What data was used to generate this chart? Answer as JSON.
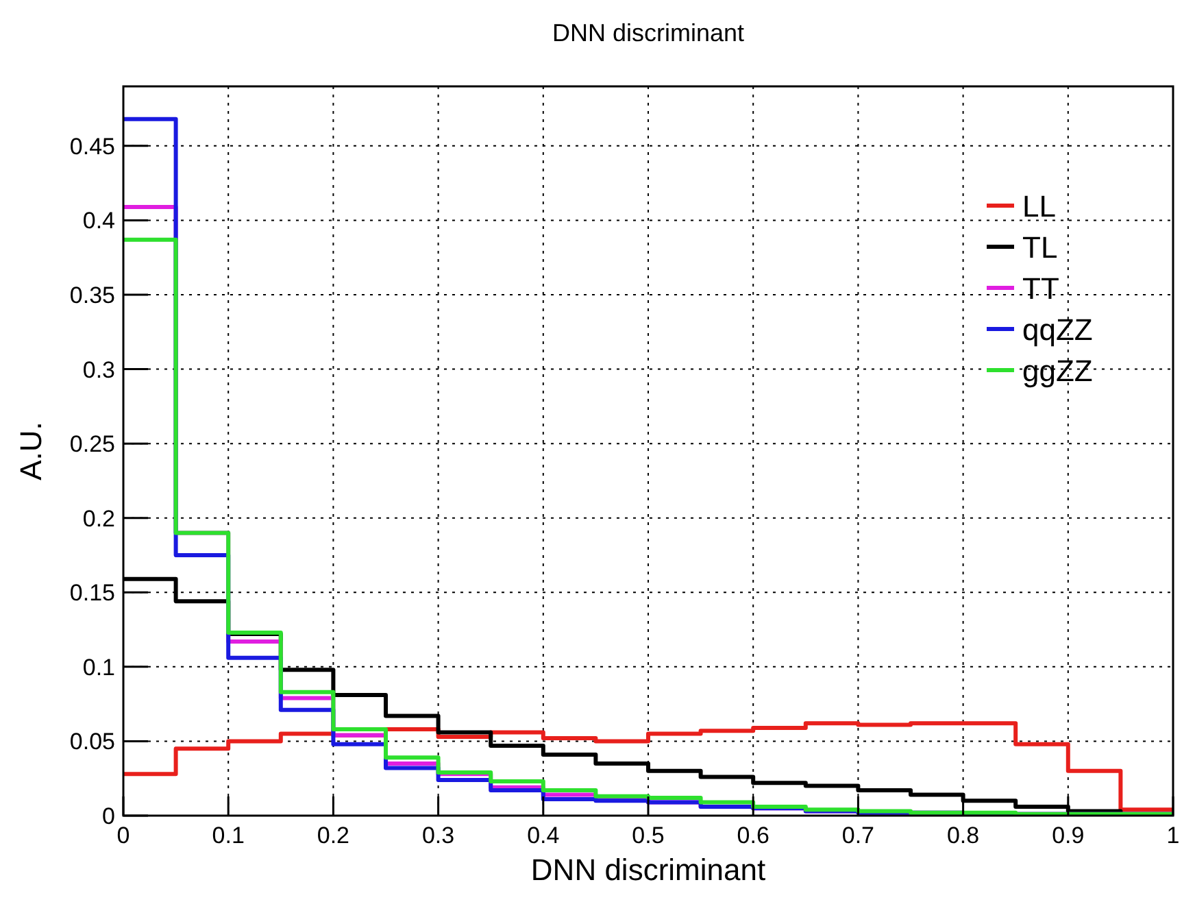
{
  "chart_data": {
    "type": "histogram",
    "title": "DNN discriminant",
    "xlabel": "DNN discriminant",
    "ylabel": "A.U.",
    "bins": [
      0,
      0.05,
      0.1,
      0.15,
      0.2,
      0.25,
      0.3,
      0.35,
      0.4,
      0.45,
      0.5,
      0.55,
      0.6,
      0.65,
      0.7,
      0.75,
      0.8,
      0.85,
      0.9,
      0.95,
      1
    ],
    "series": [
      {
        "name": "LL",
        "color": "#e8201c",
        "values": [
          0.028,
          0.045,
          0.05,
          0.055,
          0.054,
          0.058,
          0.053,
          0.056,
          0.052,
          0.05,
          0.055,
          0.057,
          0.059,
          0.062,
          0.061,
          0.062,
          0.062,
          0.048,
          0.03,
          0.004
        ]
      },
      {
        "name": "TL",
        "color": "#000000",
        "values": [
          0.159,
          0.144,
          0.122,
          0.098,
          0.081,
          0.067,
          0.056,
          0.047,
          0.041,
          0.035,
          0.03,
          0.026,
          0.022,
          0.02,
          0.017,
          0.014,
          0.01,
          0.006,
          0.003,
          0.001
        ]
      },
      {
        "name": "TT",
        "color": "#e01ee0",
        "values": [
          0.409,
          0.19,
          0.117,
          0.079,
          0.054,
          0.035,
          0.028,
          0.019,
          0.014,
          0.011,
          0.009,
          0.006,
          0.005,
          0.003,
          0.002,
          0.002,
          0.001,
          0.001,
          0.001,
          0.001
        ]
      },
      {
        "name": "qqZZ",
        "color": "#1a1ae0",
        "values": [
          0.468,
          0.175,
          0.106,
          0.071,
          0.048,
          0.032,
          0.024,
          0.017,
          0.011,
          0.01,
          0.009,
          0.006,
          0.005,
          0.003,
          0.002,
          0.002,
          0.001,
          0.001,
          0.001,
          0.001
        ]
      },
      {
        "name": "ggZZ",
        "color": "#2ee02e",
        "values": [
          0.387,
          0.19,
          0.123,
          0.083,
          0.058,
          0.039,
          0.029,
          0.023,
          0.017,
          0.013,
          0.012,
          0.009,
          0.006,
          0.004,
          0.003,
          0.002,
          0.002,
          0.001,
          0.001,
          0.001
        ]
      }
    ],
    "xlim": [
      0,
      1
    ],
    "ylim": [
      0,
      0.49
    ],
    "xticks": [
      0,
      0.1,
      0.2,
      0.3,
      0.4,
      0.5,
      0.6,
      0.7,
      0.8,
      0.9,
      1
    ],
    "yticks": [
      0,
      0.05,
      0.1,
      0.15,
      0.2,
      0.25,
      0.3,
      0.35,
      0.4,
      0.45
    ],
    "grid": true,
    "legend": "top right",
    "line_style": "solid"
  }
}
